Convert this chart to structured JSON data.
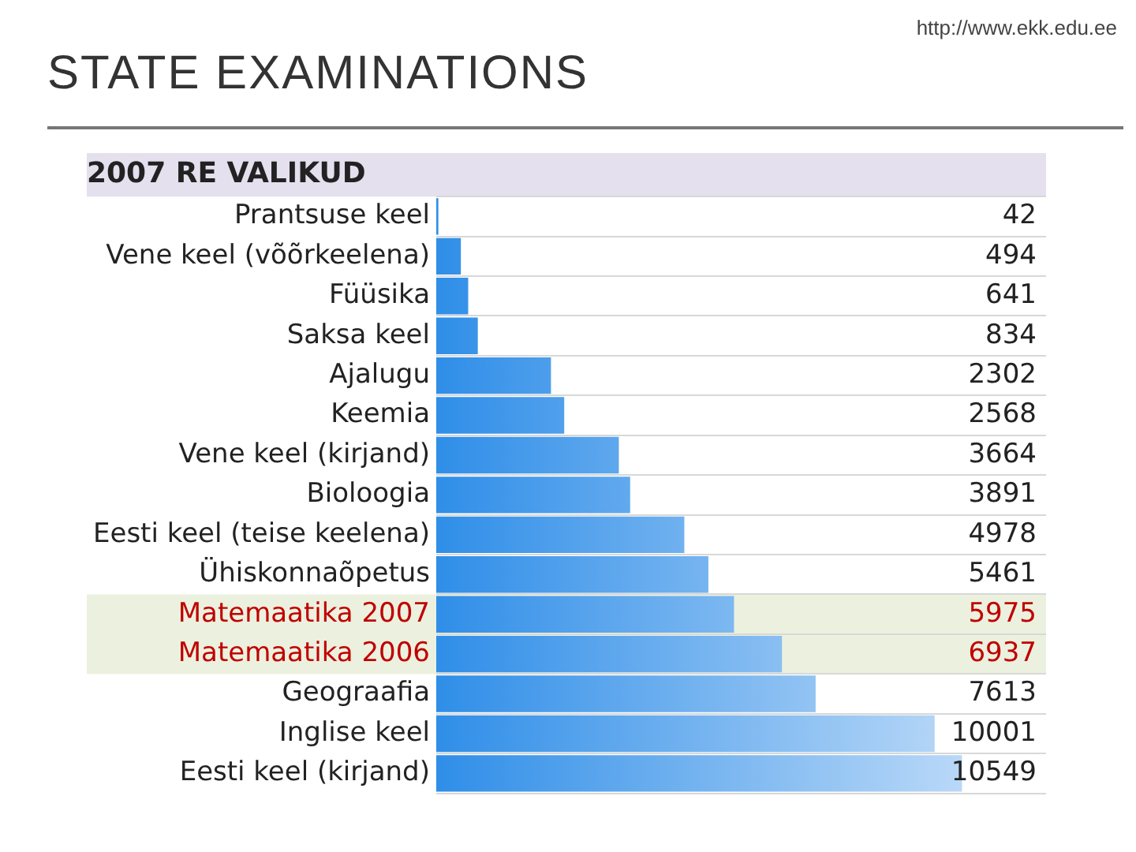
{
  "chart_data": {
    "type": "bar",
    "orientation": "horizontal",
    "title": "2007 RE VALIKUD",
    "annotations": [
      "STATE EXAMINATIONS",
      "http://www.ekk.edu.ee"
    ],
    "categories": [
      "Prantsuse keel",
      "Vene keel (võõrkeelena)",
      "Füüsika",
      "Saksa keel",
      "Ajalugu",
      "Keemia",
      "Vene keel (kirjand)",
      "Bioloogia",
      "Eesti keel (teise keelena)",
      "Ühiskonnaõpetus",
      "Matemaatika 2007",
      "Matemaatika 2006",
      "Geograafia",
      "Inglise keel",
      "Eesti keel (kirjand)"
    ],
    "values": [
      42,
      494,
      641,
      834,
      2302,
      2568,
      3664,
      3891,
      4978,
      5461,
      5975,
      6937,
      7613,
      10001,
      10549
    ],
    "color": "#2f8ee8",
    "data_labels": true,
    "tick_labels": "y",
    "grid": "y",
    "legend": false,
    "bands": [
      {
        "axis": "y",
        "from": "Matemaatika 2007",
        "to": "Matemaatika 2006",
        "color": "#ebf1de"
      }
    ]
  }
}
